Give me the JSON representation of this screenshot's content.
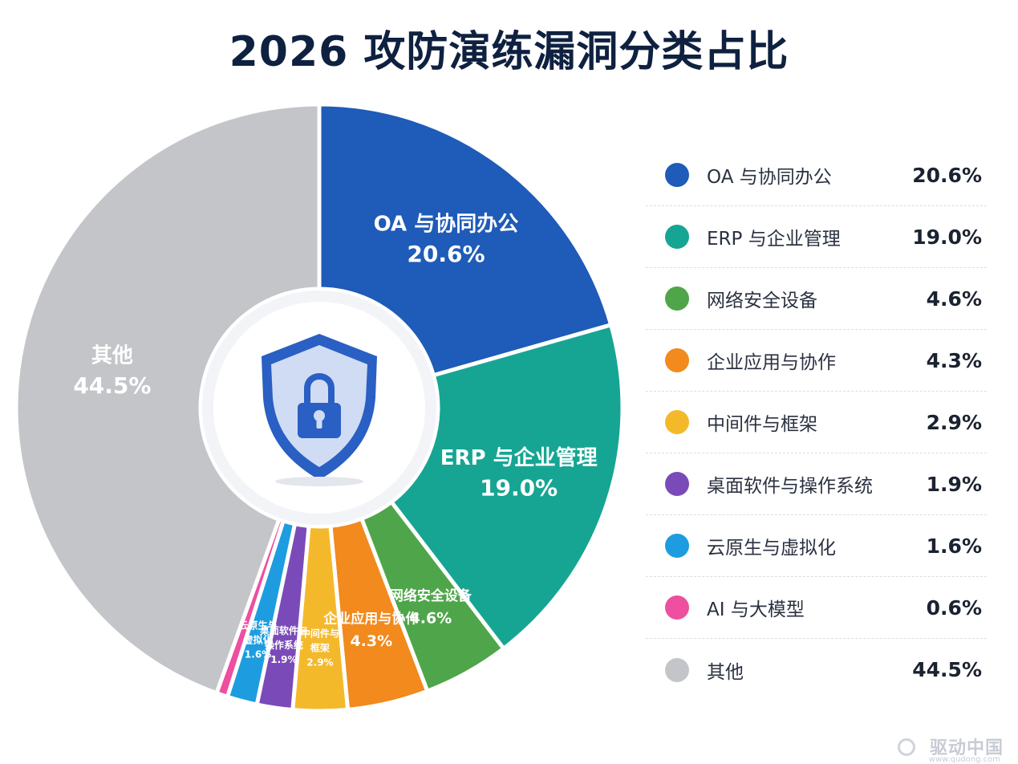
{
  "page": {
    "title": "2026 攻防演练漏洞分类占比",
    "watermark": "驱动中国",
    "watermark_url": "www.qudong.com"
  },
  "colors": {
    "title": "#0f2140",
    "background": "#ffffff",
    "center_icon": "shield-lock-icon"
  },
  "chart_data": {
    "type": "pie",
    "variant": "donut",
    "title": "2026 攻防演练漏洞分类占比",
    "legend_position": "right",
    "slices": [
      {
        "name": "OA 与协同办公",
        "value": 20.6,
        "label": "20.6%",
        "color": "#1f5bb8",
        "inside_label": [
          "OA 与协同办公",
          "20.6%"
        ]
      },
      {
        "name": "ERP 与企业管理",
        "value": 19.0,
        "label": "19.0%",
        "color": "#16a593",
        "inside_label": [
          "ERP 与企业管理",
          "19.0%"
        ]
      },
      {
        "name": "网络安全设备",
        "value": 4.6,
        "label": "4.6%",
        "color": "#4fa64a",
        "inside_label": [
          "网络安全设备",
          "4.6%"
        ]
      },
      {
        "name": "企业应用与协作",
        "value": 4.3,
        "label": "4.3%",
        "color": "#f28a1d",
        "inside_label": [
          "企业应用与协作",
          "4.3%"
        ]
      },
      {
        "name": "中间件与框架",
        "value": 2.9,
        "label": "2.9%",
        "color": "#f4b92b",
        "inside_label": [
          "中间件与",
          "框架",
          "2.9%"
        ]
      },
      {
        "name": "桌面软件与操作系统",
        "value": 1.9,
        "label": "1.9%",
        "color": "#7a4bb8",
        "inside_label": [
          "桌面软件与",
          "操作系统",
          "1.9%"
        ]
      },
      {
        "name": "云原生与虚拟化",
        "value": 1.6,
        "label": "1.6%",
        "color": "#1d9ddf",
        "inside_label": [
          "云原生与",
          "虚拟化",
          "1.6%"
        ]
      },
      {
        "name": "AI 与大模型",
        "value": 0.6,
        "label": "0.6%",
        "color": "#ee4f9e",
        "inside_label": []
      },
      {
        "name": "其他",
        "value": 44.5,
        "label": "44.5%",
        "color": "#c4c5c9",
        "inside_label": [
          "其他",
          "44.5%"
        ]
      }
    ]
  }
}
